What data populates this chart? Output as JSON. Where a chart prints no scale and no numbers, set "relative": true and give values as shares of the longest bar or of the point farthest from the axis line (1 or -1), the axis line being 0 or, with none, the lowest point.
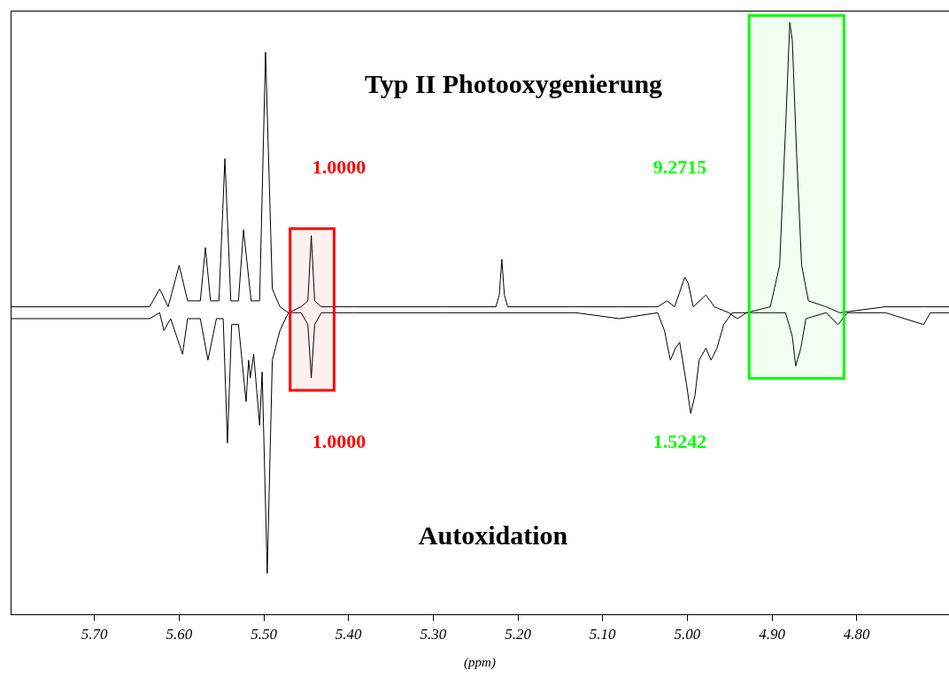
{
  "chart_data": {
    "type": "line",
    "relative": true,
    "xlabel": "(ppm)",
    "xlim": [
      5.799,
      4.691
    ],
    "xticks": [
      {
        "value": 5.7,
        "label": "5.70"
      },
      {
        "value": 5.6,
        "label": "5.60"
      },
      {
        "value": 5.5,
        "label": "5.50"
      },
      {
        "value": 5.4,
        "label": "5.40"
      },
      {
        "value": 5.3,
        "label": "5.30"
      },
      {
        "value": 5.2,
        "label": "5.20"
      },
      {
        "value": 5.1,
        "label": "5.10"
      },
      {
        "value": 5.0,
        "label": "5.00"
      },
      {
        "value": 4.9,
        "label": "4.90"
      },
      {
        "value": 4.8,
        "label": "4.80"
      }
    ],
    "series": [
      {
        "color": "#000000",
        "x": [
          5.799,
          5.635,
          5.623,
          5.613,
          5.6,
          5.59,
          5.575,
          5.569,
          5.563,
          5.553,
          5.546,
          5.539,
          5.53,
          5.524,
          5.515,
          5.505,
          5.498,
          5.49,
          5.481,
          5.471,
          5.456,
          5.448,
          5.444,
          5.44,
          5.432,
          5.42,
          5.394,
          5.289,
          5.226,
          5.222,
          5.219,
          5.216,
          5.212,
          5.132,
          5.08,
          5.035,
          5.024,
          5.015,
          5.003,
          4.999,
          4.993,
          4.978,
          4.968,
          4.951,
          4.941,
          4.93,
          4.902,
          4.891,
          4.888,
          4.884,
          4.879,
          4.876,
          4.871,
          4.865,
          4.857,
          4.836,
          4.82,
          4.766,
          4.721,
          4.691
        ],
        "values": [
          0.52,
          0.52,
          0.55,
          0.52,
          0.59,
          0.53,
          0.53,
          0.62,
          0.53,
          0.53,
          0.77,
          0.53,
          0.53,
          0.65,
          0.53,
          0.53,
          0.95,
          0.55,
          0.52,
          0.51,
          0.52,
          0.53,
          0.64,
          0.53,
          0.52,
          0.52,
          0.52,
          0.52,
          0.52,
          0.54,
          0.6,
          0.54,
          0.52,
          0.52,
          0.52,
          0.52,
          0.53,
          0.52,
          0.57,
          0.56,
          0.52,
          0.54,
          0.52,
          0.51,
          0.5,
          0.51,
          0.52,
          0.59,
          0.69,
          0.82,
          1,
          0.97,
          0.78,
          0.59,
          0.53,
          0.52,
          0.51,
          0.52,
          0.52,
          0.52
        ]
      },
      {
        "color": "#000000",
        "x": [
          5.799,
          5.635,
          5.623,
          5.618,
          5.61,
          5.596,
          5.59,
          5.575,
          5.566,
          5.556,
          5.548,
          5.543,
          5.538,
          5.53,
          5.521,
          5.518,
          5.516,
          5.512,
          5.505,
          5.502,
          5.496,
          5.49,
          5.481,
          5.471,
          5.456,
          5.448,
          5.444,
          5.44,
          5.432,
          5.394,
          5.289,
          5.132,
          5.08,
          5.035,
          5.027,
          5.02,
          5.014,
          5.009,
          5.001,
          4.996,
          4.991,
          4.986,
          4.978,
          4.972,
          4.965,
          4.957,
          4.947,
          4.93,
          4.902,
          4.884,
          4.876,
          4.872,
          4.866,
          4.86,
          4.836,
          4.822,
          4.811,
          4.766,
          4.721,
          4.713,
          4.691
        ],
        "values": [
          0.5,
          0.5,
          0.51,
          0.48,
          0.5,
          0.44,
          0.5,
          0.5,
          0.43,
          0.5,
          0.5,
          0.29,
          0.49,
          0.49,
          0.36,
          0.43,
          0.4,
          0.44,
          0.32,
          0.41,
          0.07,
          0.43,
          0.48,
          0.51,
          0.51,
          0.49,
          0.4,
          0.49,
          0.51,
          0.51,
          0.51,
          0.51,
          0.5,
          0.51,
          0.48,
          0.43,
          0.45,
          0.46,
          0.39,
          0.34,
          0.37,
          0.43,
          0.45,
          0.43,
          0.45,
          0.49,
          0.51,
          0.51,
          0.51,
          0.51,
          0.47,
          0.42,
          0.45,
          0.5,
          0.51,
          0.49,
          0.51,
          0.51,
          0.49,
          0.51,
          0.51
        ]
      }
    ],
    "bands": [
      {
        "axis": "x",
        "from": 5.469,
        "to": 5.417,
        "color": "#ff0000"
      },
      {
        "axis": "x",
        "from": 4.927,
        "to": 4.815,
        "color": "#00ff00"
      }
    ],
    "annotations": [
      "Typ II Photooxygenierung",
      "1.0000",
      "9.2715",
      "1.0000",
      "1.5242",
      "Autoxidation"
    ]
  }
}
